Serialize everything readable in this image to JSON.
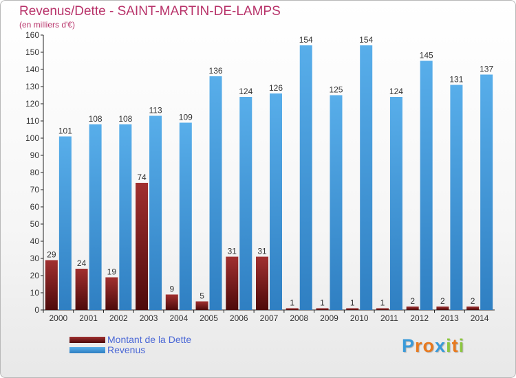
{
  "title": "Revenus/Dette - SAINT-MARTIN-DE-LAMPS",
  "subtitle": "(en milliers d'€)",
  "logo": {
    "text": "Proxiti",
    "letters": [
      "P",
      "r",
      "o",
      "x",
      "i",
      "t",
      "i"
    ],
    "colors": [
      "#3a9ad9",
      "#e8791e",
      "#e8791e",
      "#3a9ad9",
      "#8cc63f",
      "#e8791e",
      "#8cc63f"
    ]
  },
  "colors": {
    "dette": "#7a1a1a",
    "revenus": "#4aa3e0",
    "axis_text": "#333333",
    "title": "#b8336a",
    "legend_text": "#4a67d6"
  },
  "chart_data": {
    "type": "bar",
    "title": "Revenus/Dette - SAINT-MARTIN-DE-LAMPS",
    "ylabel": "(en milliers d'€)",
    "categories": [
      "2000",
      "2001",
      "2002",
      "2003",
      "2004",
      "2005",
      "2006",
      "2007",
      "2008",
      "2009",
      "2010",
      "2011",
      "2012",
      "2013",
      "2014"
    ],
    "series": [
      {
        "name": "Montant de la Dette",
        "values": [
          29,
          24,
          19,
          74,
          9,
          5,
          31,
          31,
          1,
          1,
          1,
          1,
          2,
          2,
          2
        ]
      },
      {
        "name": "Revenus",
        "values": [
          101,
          108,
          108,
          113,
          109,
          136,
          124,
          126,
          154,
          125,
          154,
          124,
          145,
          131,
          137
        ]
      }
    ],
    "ylim": [
      0,
      160
    ],
    "yticks": [
      0,
      10,
      20,
      30,
      40,
      50,
      60,
      70,
      80,
      90,
      100,
      110,
      120,
      130,
      140,
      150,
      160
    ],
    "grid": false,
    "legend_position": "bottom-left"
  }
}
